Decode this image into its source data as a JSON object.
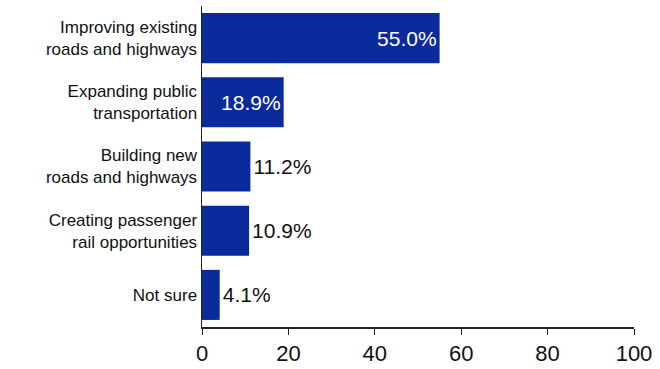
{
  "chart_data": {
    "type": "bar",
    "orientation": "horizontal",
    "categories": [
      "Improving existing roads and highways",
      "Expanding public transportation",
      "Building new roads and highways",
      "Creating passenger rail opportunities",
      "Not sure"
    ],
    "values": [
      55.0,
      18.9,
      11.2,
      10.9,
      4.1
    ],
    "value_labels": [
      "55.0%",
      "18.9%",
      "11.2%",
      "10.9%",
      "4.1%"
    ],
    "data_labels": true,
    "color": "#0b2a9c",
    "xlim": [
      0,
      100
    ],
    "xticks": [
      0,
      20,
      40,
      60,
      80,
      100
    ],
    "grid": false
  }
}
